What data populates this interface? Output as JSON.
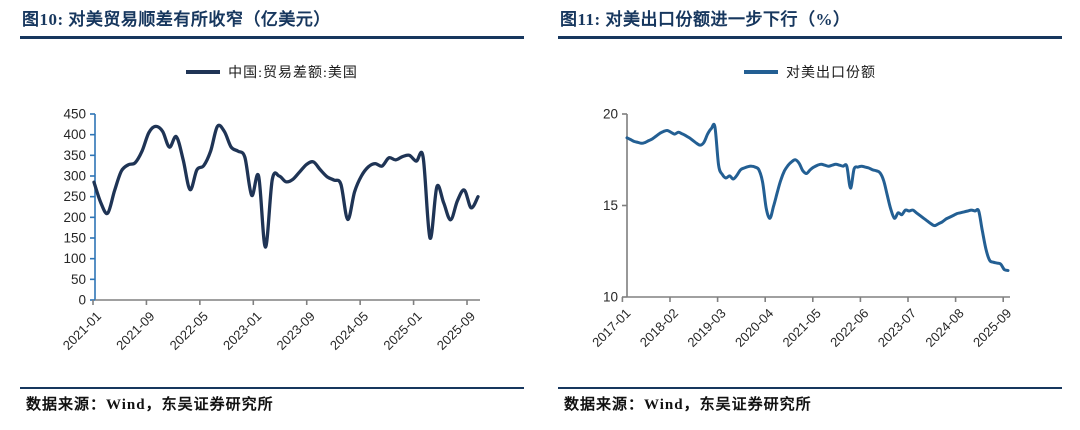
{
  "page": {
    "background": "#ffffff",
    "accent_color": "#17375e"
  },
  "figures": [
    {
      "title": "图10: 对美贸易顺差有所收窄（亿美元）",
      "source": "数据来源：Wind，东吴证券研究所"
    },
    {
      "title": "图11: 对美出口份额进一步下行（%）",
      "source": "数据来源：Wind，东吴证券研究所"
    }
  ],
  "chart_data": [
    {
      "type": "line",
      "title": "对美贸易顺差有所收窄（亿美元）",
      "legend_position": "top",
      "grid": false,
      "x_monthly_range": [
        "2021-01",
        "2025-09"
      ],
      "x_tick_labels": [
        "2021-01",
        "2021-09",
        "2022-05",
        "2023-01",
        "2023-09",
        "2024-05",
        "2025-01",
        "2025-09"
      ],
      "ylim": [
        0,
        450
      ],
      "y_ticks": [
        450,
        400,
        350,
        300,
        250,
        200,
        150,
        100,
        50,
        0
      ],
      "y_axis_color": "#2e75b6",
      "x_axis_color": "#808080",
      "tick_label_color": "#262626",
      "series": [
        {
          "name": "中国:贸易差额:美国",
          "color": "#1f3455",
          "values": [
            285,
            235,
            210,
            265,
            312,
            327,
            332,
            360,
            405,
            420,
            408,
            370,
            395,
            340,
            267,
            315,
            325,
            360,
            420,
            408,
            370,
            360,
            345,
            253,
            300,
            128,
            292,
            300,
            286,
            292,
            310,
            328,
            334,
            315,
            298,
            290,
            280,
            195,
            262,
            300,
            322,
            330,
            324,
            344,
            339,
            347,
            350,
            336,
            346,
            150,
            274,
            235,
            194,
            240,
            266,
            223,
            250
          ]
        }
      ]
    },
    {
      "type": "line",
      "title": "对美出口份额进一步下行（%）",
      "legend_position": "top",
      "grid": false,
      "x_monthly_range": [
        "2017-01",
        "2025-09"
      ],
      "x_tick_labels": [
        "2017-01",
        "2018-02",
        "2019-03",
        "2020-04",
        "2021-05",
        "2022-06",
        "2023-07",
        "2024-08",
        "2025-09"
      ],
      "ylim": [
        10,
        20
      ],
      "y_ticks": [
        20,
        15,
        10
      ],
      "y_axis_color": "#7f7f7f",
      "x_axis_color": "#808080",
      "tick_label_color": "#262626",
      "series": [
        {
          "name": "对美出口份额",
          "color": "#235f93",
          "values": [
            18.7,
            18.6,
            18.5,
            18.45,
            18.4,
            18.45,
            18.55,
            18.65,
            18.8,
            18.95,
            19.05,
            19.1,
            19.0,
            18.9,
            19.0,
            18.92,
            18.82,
            18.7,
            18.55,
            18.4,
            18.3,
            18.45,
            18.9,
            19.2,
            19.3,
            17.2,
            16.7,
            16.5,
            16.62,
            16.45,
            16.65,
            16.95,
            17.05,
            17.12,
            17.15,
            17.1,
            16.95,
            16.3,
            14.85,
            14.3,
            14.95,
            15.7,
            16.4,
            16.9,
            17.2,
            17.4,
            17.5,
            17.3,
            16.9,
            16.75,
            16.95,
            17.1,
            17.2,
            17.25,
            17.2,
            17.15,
            17.2,
            17.25,
            17.2,
            17.15,
            17.15,
            15.95,
            17.0,
            17.1,
            17.15,
            17.1,
            17.05,
            16.95,
            16.9,
            16.8,
            16.4,
            15.6,
            14.8,
            14.3,
            14.6,
            14.5,
            14.75,
            14.7,
            14.75,
            14.6,
            14.45,
            14.3,
            14.15,
            14.0,
            13.9,
            14.0,
            14.1,
            14.25,
            14.35,
            14.45,
            14.55,
            14.6,
            14.65,
            14.7,
            14.75,
            14.7,
            14.7,
            13.6,
            12.6,
            12.0,
            11.9,
            11.85,
            11.8,
            11.5,
            11.45
          ]
        }
      ]
    }
  ]
}
